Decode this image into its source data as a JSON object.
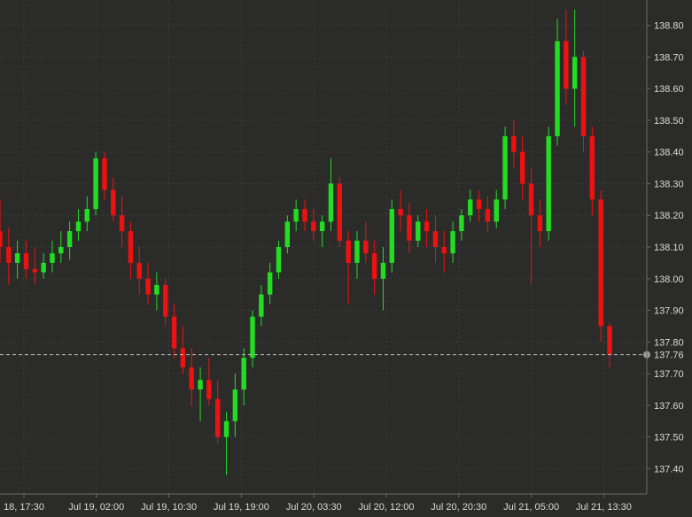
{
  "chart_data": {
    "type": "candlestick",
    "title": "",
    "xlabel": "",
    "ylabel": "",
    "ylim": [
      137.32,
      138.88
    ],
    "grid": true,
    "x_ticks": [
      "18, 17:30",
      "Jul 19, 02:00",
      "Jul 19, 10:30",
      "Jul 19, 19:00",
      "Jul 20, 03:30",
      "Jul 20, 12:00",
      "Jul 20, 20:30",
      "Jul 21, 05:00",
      "Jul 21, 13:30"
    ],
    "y_ticks": [
      "138.80",
      "138.70",
      "138.60",
      "138.50",
      "138.40",
      "138.30",
      "138.20",
      "138.10",
      "138.00",
      "137.90",
      "137.80",
      "137.70",
      "137.60",
      "137.50",
      "137.40"
    ],
    "current_price": "137.76",
    "colors": {
      "up": "#22dd22",
      "down": "#ee1111",
      "background": "#2b2c2a",
      "grid": "#3d3e3c",
      "axis_text": "#d8d8d8"
    },
    "candles": [
      [
        138.15,
        138.25,
        138.05,
        138.1
      ],
      [
        138.1,
        138.16,
        137.98,
        138.05
      ],
      [
        138.05,
        138.12,
        138.0,
        138.08
      ],
      [
        138.08,
        138.12,
        138.0,
        138.03
      ],
      [
        138.03,
        138.1,
        137.98,
        138.02
      ],
      [
        138.02,
        138.08,
        138.0,
        138.05
      ],
      [
        138.05,
        138.12,
        138.02,
        138.08
      ],
      [
        138.08,
        138.15,
        138.05,
        138.1
      ],
      [
        138.1,
        138.18,
        138.06,
        138.15
      ],
      [
        138.15,
        138.22,
        138.12,
        138.18
      ],
      [
        138.18,
        138.26,
        138.15,
        138.22
      ],
      [
        138.22,
        138.4,
        138.2,
        138.38
      ],
      [
        138.38,
        138.4,
        138.25,
        138.28
      ],
      [
        138.28,
        138.32,
        138.18,
        138.2
      ],
      [
        138.2,
        138.26,
        138.1,
        138.15
      ],
      [
        138.15,
        138.18,
        138.0,
        138.05
      ],
      [
        138.05,
        138.1,
        137.95,
        138.0
      ],
      [
        138.0,
        138.05,
        137.92,
        137.95
      ],
      [
        137.95,
        138.02,
        137.9,
        137.98
      ],
      [
        137.98,
        138.0,
        137.85,
        137.88
      ],
      [
        137.88,
        137.92,
        137.75,
        137.78
      ],
      [
        137.78,
        137.85,
        137.7,
        137.72
      ],
      [
        137.72,
        137.78,
        137.6,
        137.65
      ],
      [
        137.65,
        137.72,
        137.55,
        137.68
      ],
      [
        137.68,
        137.75,
        137.6,
        137.62
      ],
      [
        137.62,
        137.68,
        137.48,
        137.5
      ],
      [
        137.5,
        137.58,
        137.38,
        137.55
      ],
      [
        137.55,
        137.7,
        137.5,
        137.65
      ],
      [
        137.65,
        137.78,
        137.6,
        137.75
      ],
      [
        137.75,
        137.9,
        137.72,
        137.88
      ],
      [
        137.88,
        137.98,
        137.85,
        137.95
      ],
      [
        137.95,
        138.05,
        137.92,
        138.02
      ],
      [
        138.02,
        138.12,
        138.0,
        138.1
      ],
      [
        138.1,
        138.2,
        138.08,
        138.18
      ],
      [
        138.18,
        138.25,
        138.15,
        138.22
      ],
      [
        138.22,
        138.25,
        138.15,
        138.18
      ],
      [
        138.18,
        138.22,
        138.12,
        138.15
      ],
      [
        138.15,
        138.2,
        138.1,
        138.18
      ],
      [
        138.18,
        138.38,
        138.15,
        138.3
      ],
      [
        138.3,
        138.32,
        138.1,
        138.12
      ],
      [
        138.12,
        138.15,
        137.92,
        138.05
      ],
      [
        138.05,
        138.15,
        138.0,
        138.12
      ],
      [
        138.12,
        138.18,
        138.05,
        138.08
      ],
      [
        138.08,
        138.12,
        137.95,
        138.0
      ],
      [
        138.0,
        138.1,
        137.9,
        138.05
      ],
      [
        138.05,
        138.25,
        138.02,
        138.22
      ],
      [
        138.22,
        138.28,
        138.15,
        138.2
      ],
      [
        138.2,
        138.24,
        138.08,
        138.12
      ],
      [
        138.12,
        138.2,
        138.1,
        138.18
      ],
      [
        138.18,
        138.22,
        138.1,
        138.15
      ],
      [
        138.15,
        138.2,
        138.05,
        138.1
      ],
      [
        138.1,
        138.15,
        138.02,
        138.08
      ],
      [
        138.08,
        138.18,
        138.05,
        138.15
      ],
      [
        138.15,
        138.22,
        138.12,
        138.2
      ],
      [
        138.2,
        138.28,
        138.18,
        138.25
      ],
      [
        138.25,
        138.28,
        138.18,
        138.22
      ],
      [
        138.22,
        138.26,
        138.15,
        138.18
      ],
      [
        138.18,
        138.28,
        138.16,
        138.25
      ],
      [
        138.25,
        138.48,
        138.22,
        138.45
      ],
      [
        138.45,
        138.5,
        138.35,
        138.4
      ],
      [
        138.4,
        138.45,
        138.25,
        138.3
      ],
      [
        138.3,
        138.35,
        137.98,
        138.2
      ],
      [
        138.2,
        138.25,
        138.1,
        138.15
      ],
      [
        138.15,
        138.48,
        138.12,
        138.45
      ],
      [
        138.45,
        138.82,
        138.42,
        138.75
      ],
      [
        138.75,
        138.85,
        138.55,
        138.6
      ],
      [
        138.6,
        138.85,
        138.48,
        138.7
      ],
      [
        138.7,
        138.72,
        138.4,
        138.45
      ],
      [
        138.45,
        138.48,
        138.2,
        138.25
      ],
      [
        138.25,
        138.28,
        137.8,
        137.85
      ],
      [
        137.85,
        137.86,
        137.72,
        137.76
      ]
    ]
  }
}
